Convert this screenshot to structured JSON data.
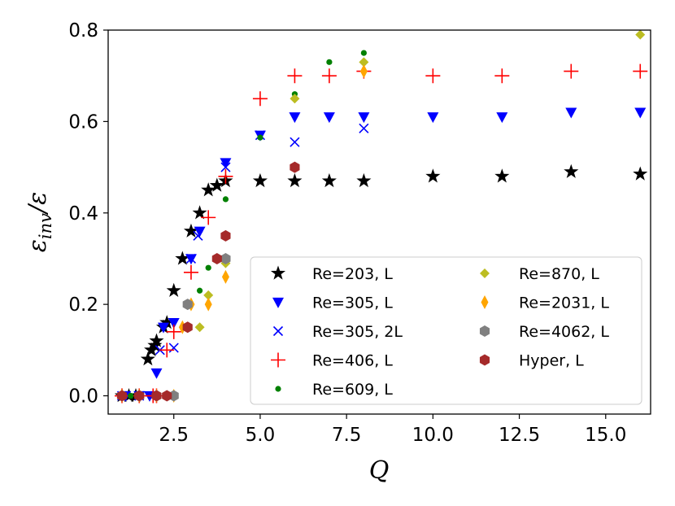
{
  "chart_data": {
    "type": "scatter",
    "xlabel": "Q",
    "ylabel": "ε_inv/ε",
    "ylabel_main": "ε",
    "ylabel_sub": "inv",
    "ylabel_tail": "/ε",
    "xlim": [
      0.6,
      16.3
    ],
    "ylim": [
      -0.04,
      0.8
    ],
    "xticks": [
      2.5,
      5.0,
      7.5,
      10.0,
      12.5,
      15.0
    ],
    "xtick_labels": [
      "2.5",
      "5.0",
      "7.5",
      "10.0",
      "12.5",
      "15.0"
    ],
    "yticks": [
      0.0,
      0.2,
      0.4,
      0.6,
      0.8
    ],
    "ytick_labels": [
      "0.0",
      "0.2",
      "0.4",
      "0.6",
      "0.8"
    ],
    "legend_position": "lower-right",
    "series": [
      {
        "name": "Re=203, L",
        "marker": "star",
        "color": "#000000",
        "x": [
          1.0,
          1.2,
          1.4,
          1.75,
          1.85,
          1.95,
          2.0,
          2.2,
          2.3,
          2.5,
          2.75,
          3.0,
          3.25,
          3.5,
          3.75,
          4.0,
          5.0,
          6.0,
          7.0,
          8.0,
          10.0,
          12.0,
          14.0,
          16.0
        ],
        "y": [
          0.0,
          0.0,
          0.0,
          0.08,
          0.1,
          0.11,
          0.12,
          0.15,
          0.16,
          0.23,
          0.3,
          0.36,
          0.4,
          0.45,
          0.46,
          0.47,
          0.47,
          0.47,
          0.47,
          0.47,
          0.48,
          0.48,
          0.49,
          0.485
        ]
      },
      {
        "name": "Re=305, L",
        "marker": "triangle-down",
        "color": "#0000ff",
        "x": [
          1.1,
          1.5,
          1.8,
          2.0,
          2.2,
          2.5,
          3.0,
          3.25,
          4.0,
          5.0,
          6.0,
          7.0,
          8.0,
          10.0,
          12.0,
          14.0,
          16.0
        ],
        "y": [
          0.0,
          0.0,
          0.0,
          0.05,
          0.15,
          0.16,
          0.3,
          0.36,
          0.51,
          0.57,
          0.61,
          0.61,
          0.61,
          0.61,
          0.61,
          0.62,
          0.62
        ]
      },
      {
        "name": "Re=305, 2L",
        "marker": "x",
        "color": "#0000ff",
        "x": [
          1.0,
          1.5,
          2.1,
          2.5,
          3.0,
          3.2,
          4.0,
          5.0,
          6.0,
          8.0
        ],
        "y": [
          0.0,
          0.0,
          0.1,
          0.105,
          0.3,
          0.35,
          0.5,
          0.57,
          0.555,
          0.585
        ]
      },
      {
        "name": "Re=406, L",
        "marker": "plus",
        "color": "#ff0000",
        "x": [
          1.0,
          1.5,
          1.9,
          2.0,
          2.3,
          2.5,
          3.0,
          3.5,
          4.0,
          5.0,
          6.0,
          7.0,
          8.0,
          10.0,
          12.0,
          14.0,
          16.0
        ],
        "y": [
          0.0,
          0.0,
          0.0,
          0.0,
          0.1,
          0.14,
          0.27,
          0.39,
          0.48,
          0.65,
          0.7,
          0.7,
          0.71,
          0.7,
          0.7,
          0.71,
          0.71
        ]
      },
      {
        "name": "Re=609, L",
        "marker": "circle",
        "color": "#008000",
        "x": [
          1.0,
          1.25,
          1.5,
          2.0,
          2.5,
          3.0,
          3.25,
          3.5,
          4.0,
          5.0,
          6.0,
          7.0,
          8.0
        ],
        "y": [
          0.0,
          0.0,
          0.0,
          0.0,
          0.0,
          0.2,
          0.23,
          0.28,
          0.43,
          0.565,
          0.66,
          0.73,
          0.75
        ]
      },
      {
        "name": "Re=870, L",
        "marker": "diamond",
        "color": "#bcbd22",
        "x": [
          1.0,
          1.5,
          2.0,
          2.5,
          3.25,
          3.5,
          4.0,
          6.0,
          8.0,
          16.0
        ],
        "y": [
          0.0,
          0.0,
          0.0,
          0.0,
          0.15,
          0.22,
          0.29,
          0.65,
          0.73,
          0.79
        ]
      },
      {
        "name": "Re=2031, L",
        "marker": "thin-diamond",
        "color": "#ffa500",
        "x": [
          1.0,
          1.5,
          2.0,
          2.5,
          2.75,
          3.0,
          3.5,
          4.0,
          8.0
        ],
        "y": [
          0.0,
          0.0,
          0.0,
          0.0,
          0.15,
          0.2,
          0.2,
          0.26,
          0.71
        ]
      },
      {
        "name": "Re=4062, L",
        "marker": "hexagon",
        "color": "#808080",
        "x": [
          1.0,
          1.5,
          2.0,
          2.5,
          2.9,
          4.0
        ],
        "y": [
          0.0,
          0.0,
          0.0,
          0.0,
          0.2,
          0.3
        ]
      },
      {
        "name": "Hyper, L",
        "marker": "hexagon",
        "color": "#a52a2a",
        "x": [
          1.0,
          1.5,
          2.0,
          2.3,
          2.9,
          3.75,
          4.0,
          6.0
        ],
        "y": [
          0.0,
          0.0,
          0.0,
          0.0,
          0.15,
          0.3,
          0.35,
          0.5
        ]
      }
    ]
  }
}
